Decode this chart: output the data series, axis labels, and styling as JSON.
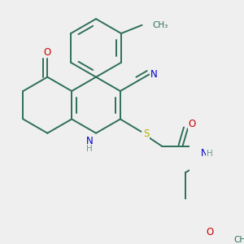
{
  "bg_color": "#efefef",
  "bond_color": "#2d6e5a",
  "bond_width": 1.4,
  "atom_colors": {
    "N": "#0000cc",
    "O": "#cc0000",
    "S": "#bbaa00",
    "H": "#6a9a8a"
  },
  "font_size": 8.5,
  "fig_size": [
    3.0,
    3.0
  ],
  "dpi": 100
}
